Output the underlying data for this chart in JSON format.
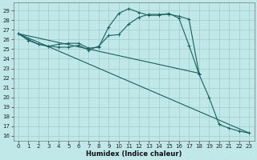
{
  "title": "",
  "xlabel": "Humidex (Indice chaleur)",
  "bg_color": "#c0e8e8",
  "grid_color": "#a0cccc",
  "line_color": "#1a6060",
  "xlim": [
    -0.5,
    23.5
  ],
  "ylim": [
    15.5,
    29.8
  ],
  "xticks": [
    0,
    1,
    2,
    3,
    4,
    5,
    6,
    7,
    8,
    9,
    10,
    11,
    12,
    13,
    14,
    15,
    16,
    17,
    18,
    19,
    20,
    21,
    22,
    23
  ],
  "yticks": [
    16,
    17,
    18,
    19,
    20,
    21,
    22,
    23,
    24,
    25,
    26,
    27,
    28,
    29
  ],
  "line1_x": [
    0,
    1,
    2,
    3,
    4,
    5,
    6,
    7,
    8,
    9,
    10,
    11,
    12,
    13,
    14,
    15,
    16,
    17,
    18,
    19,
    20,
    21,
    22,
    23
  ],
  "line1_y": [
    26.6,
    26.0,
    25.5,
    25.3,
    25.5,
    25.6,
    25.6,
    25.1,
    25.2,
    27.3,
    28.7,
    29.2,
    28.8,
    28.5,
    28.5,
    28.7,
    28.2,
    25.4,
    22.4,
    20.0,
    17.2,
    16.8,
    16.5,
    16.3
  ],
  "line2_x": [
    0,
    1,
    2,
    3,
    4,
    5,
    6,
    7,
    8,
    9,
    10,
    11,
    12,
    13,
    14,
    15,
    16,
    17,
    18
  ],
  "line2_y": [
    26.6,
    25.9,
    25.5,
    25.3,
    25.2,
    25.2,
    25.4,
    24.9,
    25.3,
    26.4,
    26.5,
    27.6,
    28.3,
    28.6,
    28.6,
    28.6,
    28.4,
    28.1,
    22.5
  ],
  "line3_x": [
    0,
    23
  ],
  "line3_y": [
    26.6,
    16.3
  ],
  "line4_x": [
    0,
    18
  ],
  "line4_y": [
    26.6,
    22.5
  ]
}
